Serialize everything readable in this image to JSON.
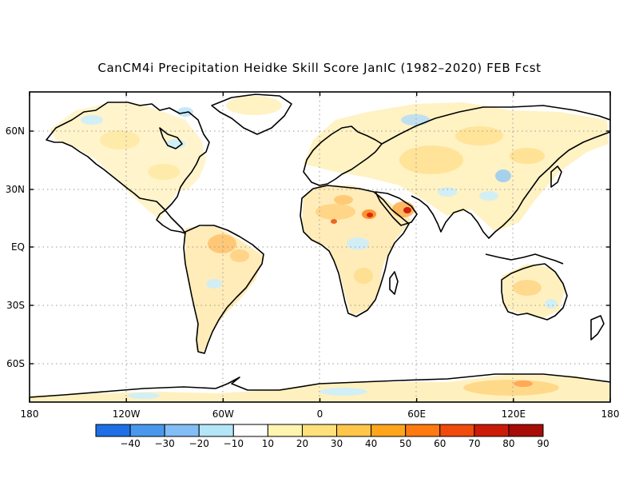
{
  "title": "CanCM4i Precipitation Heidke Skill Score JanIC (1982–2020) FEB Fcst",
  "map": {
    "lon_ticks": [
      "180",
      "120W",
      "60W",
      "0",
      "60E",
      "120E",
      "180"
    ],
    "lat_ticks": [
      "60N",
      "30N",
      "EQ",
      "30S",
      "60S"
    ],
    "gridlines": "dotted",
    "background_color": "#ffffff",
    "coastline_color": "#000000"
  },
  "colorbar": {
    "labels": [
      "−40",
      "−30",
      "−20",
      "−10",
      "10",
      "20",
      "30",
      "40",
      "50",
      "60",
      "70",
      "80",
      "90"
    ],
    "colors": [
      "#1e6fe6",
      "#4a98ee",
      "#82bdf6",
      "#b3e6f6",
      "#ffffff",
      "#fff4b0",
      "#ffe07a",
      "#ffc64a",
      "#ffa51c",
      "#ff7a10",
      "#f04a0c",
      "#cc1a08",
      "#a80c06"
    ]
  }
}
